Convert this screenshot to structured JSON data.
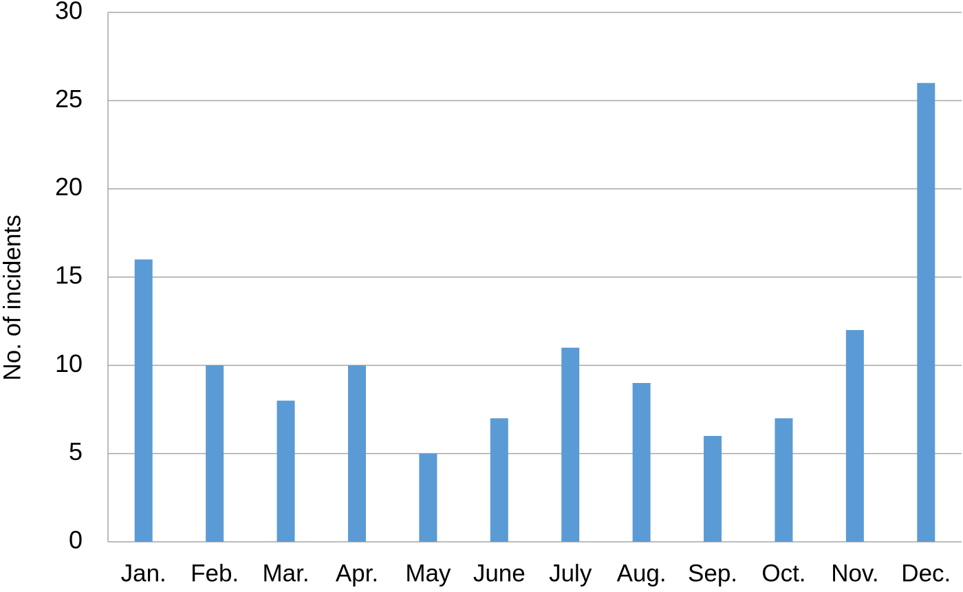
{
  "chart_data": {
    "type": "bar",
    "y_label": "No. of incidents",
    "categories": [
      "Jan.",
      "Feb.",
      "Mar.",
      "Apr.",
      "May",
      "June",
      "July",
      "Aug.",
      "Sep.",
      "Oct.",
      "Nov.",
      "Dec."
    ],
    "values": [
      16,
      10,
      8,
      10,
      5,
      7,
      11,
      9,
      6,
      7,
      12,
      26
    ],
    "color": "#5b9bd5",
    "ylim": [
      0,
      30
    ],
    "yticks": [
      0,
      5,
      10,
      15,
      20,
      25,
      30
    ],
    "grid": true
  }
}
